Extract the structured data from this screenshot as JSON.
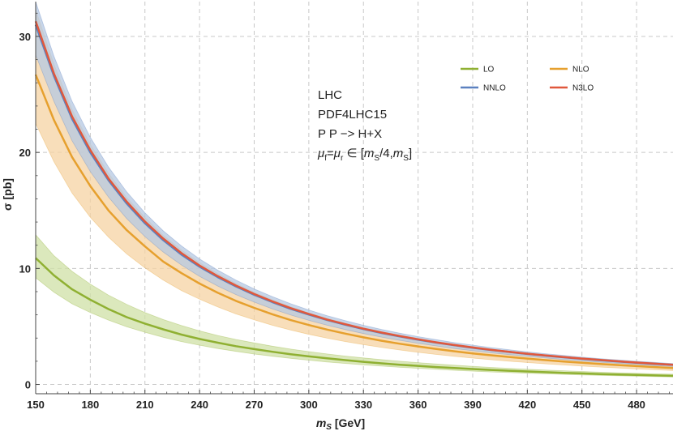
{
  "chart_data": {
    "type": "line",
    "title": "",
    "xlabel_main": "m",
    "xlabel_sub": "S",
    "xlabel_unit": " [GeV]",
    "ylabel": "σ [pb]",
    "xlim": [
      150,
      500
    ],
    "ylim": [
      -0.8,
      33
    ],
    "x_ticks": [
      150,
      180,
      210,
      240,
      270,
      300,
      330,
      360,
      390,
      420,
      450,
      480
    ],
    "y_ticks": [
      0,
      10,
      20,
      30
    ],
    "grid": true,
    "legend_position": "top-right",
    "annotations": [
      "LHC",
      "PDF4LHC15",
      "P P −> H+X"
    ],
    "scale_annotation": {
      "mu": "μ",
      "f": "f",
      "eq": "=",
      "r": "r",
      "in": " ∈ [",
      "m": "m",
      "S": "S",
      "quarter": "/4,",
      "close": "]"
    },
    "x": [
      150,
      160,
      170,
      180,
      190,
      200,
      210,
      220,
      230,
      240,
      250,
      260,
      270,
      280,
      290,
      300,
      310,
      320,
      330,
      340,
      350,
      360,
      370,
      380,
      390,
      400,
      410,
      420,
      430,
      440,
      450,
      460,
      470,
      480,
      490,
      500
    ],
    "series": [
      {
        "name": "LO",
        "color": "#8fb032",
        "band_color": "#cfe0a6",
        "central": [
          10.9,
          9.4,
          8.2,
          7.3,
          6.5,
          5.8,
          5.25,
          4.75,
          4.3,
          3.92,
          3.6,
          3.3,
          3.05,
          2.82,
          2.6,
          2.42,
          2.25,
          2.1,
          1.95,
          1.82,
          1.7,
          1.6,
          1.5,
          1.42,
          1.33,
          1.25,
          1.18,
          1.12,
          1.06,
          1.0,
          0.95,
          0.9,
          0.86,
          0.82,
          0.78,
          0.74
        ],
        "upper": [
          12.9,
          11.1,
          9.75,
          8.65,
          7.7,
          6.9,
          6.2,
          5.6,
          5.08,
          4.62,
          4.22,
          3.88,
          3.58,
          3.3,
          3.05,
          2.83,
          2.63,
          2.45,
          2.29,
          2.14,
          2.0,
          1.88,
          1.76,
          1.66,
          1.56,
          1.47,
          1.39,
          1.31,
          1.24,
          1.18,
          1.12,
          1.06,
          1.01,
          0.96,
          0.92,
          0.88
        ],
        "lower": [
          9.2,
          7.95,
          6.95,
          6.2,
          5.55,
          4.97,
          4.5,
          4.07,
          3.7,
          3.38,
          3.1,
          2.85,
          2.62,
          2.43,
          2.25,
          2.09,
          1.94,
          1.81,
          1.69,
          1.58,
          1.48,
          1.39,
          1.3,
          1.22,
          1.15,
          1.08,
          1.02,
          0.97,
          0.92,
          0.87,
          0.82,
          0.78,
          0.74,
          0.71,
          0.68,
          0.64
        ]
      },
      {
        "name": "NLO",
        "color": "#e6a02e",
        "band_color": "#f6d3a3",
        "central": [
          26.7,
          22.8,
          19.6,
          17.1,
          15.0,
          13.3,
          11.9,
          10.6,
          9.6,
          8.7,
          7.9,
          7.2,
          6.6,
          6.05,
          5.55,
          5.12,
          4.73,
          4.38,
          4.06,
          3.77,
          3.51,
          3.28,
          3.06,
          2.86,
          2.68,
          2.52,
          2.37,
          2.23,
          2.1,
          1.98,
          1.87,
          1.77,
          1.67,
          1.58,
          1.5,
          1.42
        ],
        "upper": [
          32.3,
          27.6,
          23.7,
          20.7,
          18.2,
          16.1,
          14.4,
          12.85,
          11.6,
          10.5,
          9.55,
          8.7,
          7.95,
          7.3,
          6.7,
          6.17,
          5.7,
          5.28,
          4.9,
          4.55,
          4.24,
          3.96,
          3.7,
          3.46,
          3.24,
          3.04,
          2.86,
          2.69,
          2.53,
          2.39,
          2.26,
          2.13,
          2.02,
          1.91,
          1.81,
          1.72
        ],
        "lower": [
          22.5,
          19.2,
          16.5,
          14.4,
          12.7,
          11.25,
          10.05,
          9.0,
          8.1,
          7.35,
          6.68,
          6.08,
          5.57,
          5.1,
          4.69,
          4.32,
          3.99,
          3.7,
          3.43,
          3.19,
          2.97,
          2.77,
          2.59,
          2.42,
          2.27,
          2.13,
          2.0,
          1.89,
          1.78,
          1.68,
          1.58,
          1.5,
          1.42,
          1.34,
          1.27,
          1.2
        ]
      },
      {
        "name": "NNLO",
        "color": "#5c81c0",
        "band_color": "#b6c8e2",
        "central": [
          31.0,
          26.6,
          22.9,
          20.0,
          17.6,
          15.6,
          13.9,
          12.45,
          11.2,
          10.15,
          9.25,
          8.45,
          7.73,
          7.1,
          6.52,
          6.02,
          5.56,
          5.15,
          4.78,
          4.44,
          4.14,
          3.86,
          3.61,
          3.38,
          3.17,
          2.97,
          2.8,
          2.63,
          2.48,
          2.34,
          2.21,
          2.09,
          1.98,
          1.87,
          1.78,
          1.69
        ],
        "upper": [
          33.0,
          28.3,
          24.4,
          21.3,
          18.75,
          16.6,
          14.8,
          13.25,
          11.95,
          10.82,
          9.85,
          9.0,
          8.24,
          7.57,
          6.96,
          6.42,
          5.93,
          5.5,
          5.1,
          4.74,
          4.42,
          4.12,
          3.86,
          3.61,
          3.39,
          3.18,
          2.99,
          2.81,
          2.65,
          2.5,
          2.36,
          2.23,
          2.11,
          2.0,
          1.9,
          1.8
        ],
        "lower": [
          28.4,
          24.4,
          21.0,
          18.35,
          16.15,
          14.3,
          12.75,
          11.42,
          10.3,
          9.32,
          8.48,
          7.75,
          7.1,
          6.51,
          5.99,
          5.53,
          5.11,
          4.73,
          4.39,
          4.08,
          3.8,
          3.55,
          3.32,
          3.1,
          2.91,
          2.73,
          2.57,
          2.42,
          2.28,
          2.15,
          2.03,
          1.92,
          1.82,
          1.72,
          1.63,
          1.55
        ]
      },
      {
        "name": "N3LO",
        "color": "#e0583c",
        "central": [
          31.3,
          26.8,
          23.1,
          20.2,
          17.75,
          15.75,
          14.05,
          12.58,
          11.32,
          10.25,
          9.33,
          8.52,
          7.8,
          7.16,
          6.58,
          6.07,
          5.6,
          5.19,
          4.81,
          4.47,
          4.17,
          3.89,
          3.63,
          3.4,
          3.19,
          2.99,
          2.81,
          2.65,
          2.5,
          2.36,
          2.23,
          2.11,
          1.99,
          1.89,
          1.79,
          1.7
        ]
      }
    ]
  }
}
